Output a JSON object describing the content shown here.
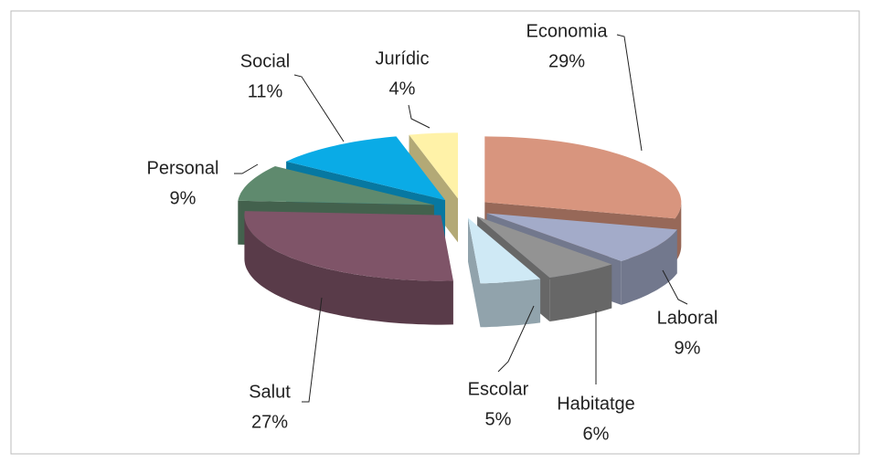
{
  "chart_data": {
    "type": "pie3d",
    "categories": [
      "Economia",
      "Laboral",
      "Habitatge",
      "Escolar",
      "Salut",
      "Personal",
      "Social",
      "Jurídic"
    ],
    "values": [
      29,
      9,
      6,
      5,
      27,
      9,
      11,
      4
    ],
    "value_labels": [
      "29%",
      "9%",
      "6%",
      "5%",
      "27%",
      "9%",
      "11%",
      "4%"
    ],
    "colors": [
      "#d8957e",
      "#a3abc9",
      "#939393",
      "#cfe9f5",
      "#7f5468",
      "#5f8a6e",
      "#0aabe6",
      "#fff2a8"
    ]
  }
}
